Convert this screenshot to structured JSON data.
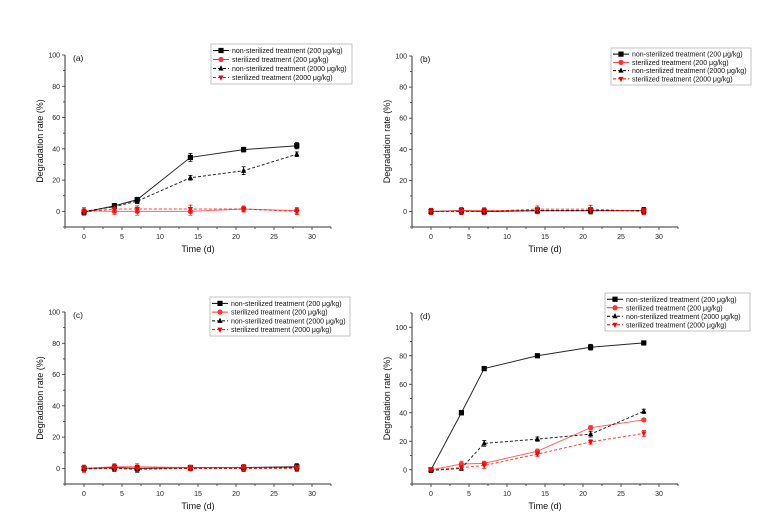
{
  "chart_data": [
    {
      "type": "line",
      "panel_label": "(a)",
      "xlabel": "Time (d)",
      "ylabel": "Degradation rate (%)",
      "xlim": [
        -2.5,
        32.5
      ],
      "ylim": [
        -10,
        100
      ],
      "xticks": [
        0,
        5,
        10,
        15,
        20,
        25,
        30
      ],
      "yticks": [
        0,
        20,
        40,
        60,
        80,
        100
      ],
      "legend_position": "top-right",
      "x": [
        0,
        4,
        7,
        14,
        21,
        28
      ],
      "series": [
        {
          "name": "non-sterilized treatment (200 μg/kg)",
          "marker": "square",
          "color": "#000000",
          "dash": "solid",
          "values": [
            -0.5,
            3.5,
            7.5,
            34.5,
            39.5,
            42
          ],
          "errors": [
            1.5,
            1.5,
            1.5,
            2.5,
            1.5,
            2
          ]
        },
        {
          "name": "sterilized treatment (200 μg/kg)",
          "marker": "circle",
          "color": "#ff3333",
          "dash": "solid",
          "values": [
            0.5,
            0,
            0,
            0,
            1.5,
            0.5
          ],
          "errors": [
            2,
            2,
            2.5,
            2.5,
            2,
            2
          ]
        },
        {
          "name": "non-sterilized treatment (2000 μg/kg)",
          "marker": "triangle-up",
          "color": "#000000",
          "dash": "dashed",
          "values": [
            0,
            3,
            6.5,
            21.5,
            26,
            36.5
          ],
          "errors": [
            1.5,
            1.5,
            1.5,
            1.5,
            2.5,
            1.5
          ]
        },
        {
          "name": "sterilized treatment (2000 μg/kg)",
          "marker": "triangle-down",
          "color": "#ff0000",
          "dash": "dashed",
          "values": [
            -0.5,
            1.5,
            1.5,
            1.5,
            1.5,
            0
          ],
          "errors": [
            2,
            2,
            2,
            2.5,
            1.5,
            2
          ]
        }
      ]
    },
    {
      "type": "line",
      "panel_label": "(b)",
      "xlabel": "Time (d)",
      "ylabel": "Degradation rate (%)",
      "xlim": [
        -2.5,
        32.5
      ],
      "ylim": [
        -10,
        100
      ],
      "xticks": [
        0,
        5,
        10,
        15,
        20,
        25,
        30
      ],
      "yticks": [
        0,
        20,
        40,
        60,
        80,
        100
      ],
      "legend_position": "top-right",
      "x": [
        0,
        4,
        7,
        14,
        21,
        28
      ],
      "series": [
        {
          "name": "non-sterilized treatment (200 μg/kg)",
          "marker": "square",
          "color": "#000000",
          "dash": "solid",
          "values": [
            0,
            0.5,
            0,
            0.5,
            0.5,
            0.5
          ],
          "errors": [
            1.5,
            2,
            2,
            1.5,
            2,
            2
          ]
        },
        {
          "name": "sterilized treatment (200 μg/kg)",
          "marker": "circle",
          "color": "#ff3333",
          "dash": "solid",
          "values": [
            0,
            0.5,
            0.5,
            0.5,
            0.5,
            0.5
          ],
          "errors": [
            2,
            2,
            2,
            2,
            2,
            2
          ]
        },
        {
          "name": "non-sterilized treatment (2000 μg/kg)",
          "marker": "triangle-up",
          "color": "#000000",
          "dash": "dashed",
          "values": [
            0,
            0,
            0,
            0.5,
            0.5,
            0.5
          ],
          "errors": [
            1.5,
            2,
            1.5,
            1.5,
            2,
            2
          ]
        },
        {
          "name": "sterilized treatment (2000 μg/kg)",
          "marker": "triangle-down",
          "color": "#ff0000",
          "dash": "dashed",
          "values": [
            0,
            0,
            0,
            1.5,
            1.5,
            0
          ],
          "errors": [
            2,
            2,
            2,
            2,
            2.5,
            2
          ]
        }
      ]
    },
    {
      "type": "line",
      "panel_label": "(c)",
      "xlabel": "Time (d)",
      "ylabel": "Degradation rate (%)",
      "xlim": [
        -2.5,
        32.5
      ],
      "ylim": [
        -10,
        100
      ],
      "xticks": [
        0,
        5,
        10,
        15,
        20,
        25,
        30
      ],
      "yticks": [
        0,
        20,
        40,
        60,
        80,
        100
      ],
      "legend_position": "top-right",
      "x": [
        0,
        4,
        7,
        14,
        21,
        28
      ],
      "series": [
        {
          "name": "non-sterilized treatment (200 μg/kg)",
          "marker": "square",
          "color": "#000000",
          "dash": "solid",
          "values": [
            0,
            0.5,
            0,
            0.5,
            0.5,
            1
          ],
          "errors": [
            2,
            2,
            2,
            1.5,
            2,
            2
          ]
        },
        {
          "name": "sterilized treatment (200 μg/kg)",
          "marker": "circle",
          "color": "#ff3333",
          "dash": "solid",
          "values": [
            0,
            1,
            1,
            0.5,
            0.5,
            0.5
          ],
          "errors": [
            2,
            2,
            2,
            1.5,
            2,
            2
          ]
        },
        {
          "name": "non-sterilized treatment (2000 μg/kg)",
          "marker": "triangle-up",
          "color": "#000000",
          "dash": "dashed",
          "values": [
            0,
            0,
            -0.5,
            0,
            0,
            0.5
          ],
          "errors": [
            1.5,
            2,
            2,
            1.5,
            2,
            2
          ]
        },
        {
          "name": "sterilized treatment (2000 μg/kg)",
          "marker": "triangle-down",
          "color": "#ff0000",
          "dash": "dashed",
          "values": [
            -0.5,
            0,
            0,
            0,
            0,
            0
          ],
          "errors": [
            2,
            2,
            2,
            1.5,
            2,
            2
          ]
        }
      ]
    },
    {
      "type": "line",
      "panel_label": "(d)",
      "xlabel": "Time (d)",
      "ylabel": "Degradation rate (%)",
      "xlim": [
        -2.5,
        32.5
      ],
      "ylim": [
        -10,
        110
      ],
      "xticks": [
        0,
        5,
        10,
        15,
        20,
        25,
        30
      ],
      "yticks": [
        0,
        20,
        40,
        60,
        80,
        100
      ],
      "legend_position": "top-right",
      "x": [
        0,
        4,
        7,
        14,
        21,
        28
      ],
      "series": [
        {
          "name": "non-sterilized treatment (200 μg/kg)",
          "marker": "square",
          "color": "#000000",
          "dash": "solid",
          "values": [
            0,
            40,
            71,
            80,
            86,
            89
          ],
          "errors": [
            1.5,
            1.5,
            1.5,
            1,
            2,
            1
          ]
        },
        {
          "name": "sterilized treatment (200 μg/kg)",
          "marker": "circle",
          "color": "#ff3333",
          "dash": "solid",
          "values": [
            0,
            4,
            4.5,
            13,
            29.5,
            35
          ],
          "errors": [
            1.5,
            2,
            1.5,
            1.5,
            1.5,
            1
          ]
        },
        {
          "name": "non-sterilized treatment (2000 μg/kg)",
          "marker": "triangle-up",
          "color": "#000000",
          "dash": "dashed",
          "values": [
            -0.5,
            1,
            18.5,
            21.5,
            25,
            41
          ],
          "errors": [
            1.5,
            1.5,
            2,
            1.5,
            2,
            1.5
          ]
        },
        {
          "name": "sterilized treatment (2000 μg/kg)",
          "marker": "triangle-down",
          "color": "#ff0000",
          "dash": "dashed",
          "values": [
            0,
            1.5,
            3,
            11,
            19.5,
            25.5
          ],
          "errors": [
            1,
            1.5,
            2,
            1.5,
            1.5,
            2
          ]
        }
      ]
    }
  ]
}
